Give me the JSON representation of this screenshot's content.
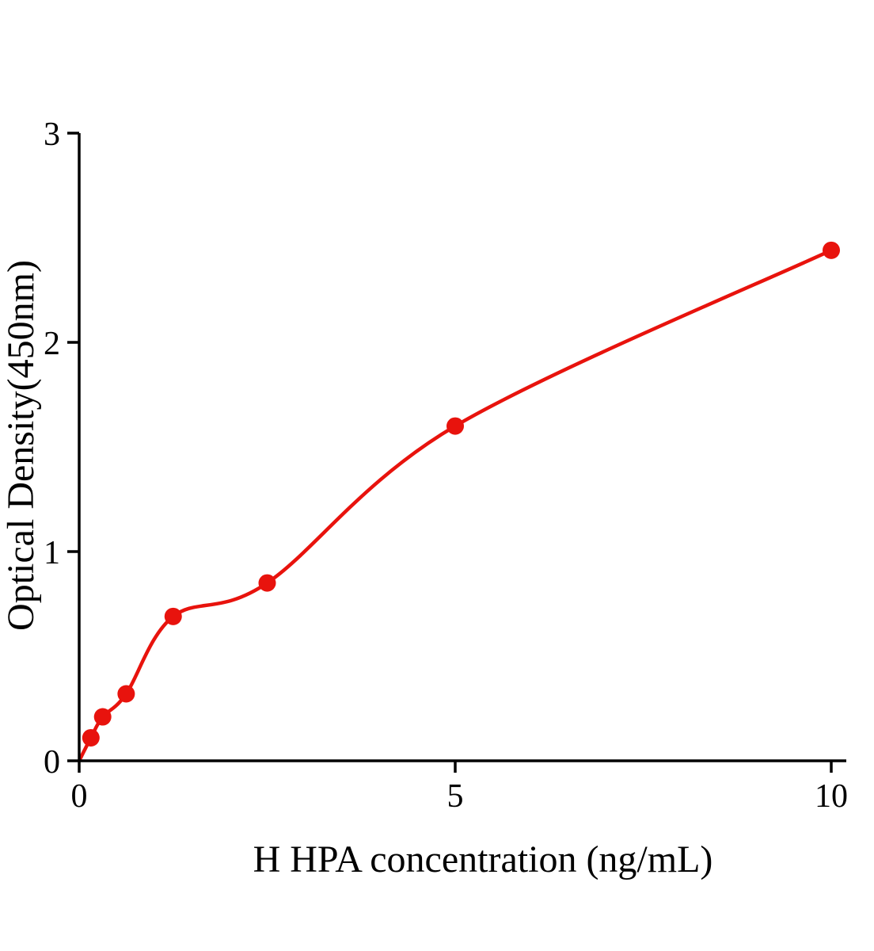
{
  "chart_data": {
    "type": "scatter",
    "title": "",
    "xlabel": "H HPA concentration (ng/mL)",
    "ylabel": "Optical Density(450nm)",
    "x": [
      0.156,
      0.3125,
      0.625,
      1.25,
      2.5,
      5,
      10
    ],
    "y": [
      0.11,
      0.21,
      0.32,
      0.69,
      0.85,
      1.6,
      2.44
    ],
    "curve_start_x": 0,
    "curve_start_y": 0,
    "xlim": [
      0,
      10.2
    ],
    "ylim": [
      0,
      3
    ],
    "xticks": [
      0,
      5,
      10
    ],
    "yticks": [
      0,
      1,
      2,
      3
    ],
    "point_color": "#e8130d",
    "line_color": "#e8130d",
    "axis_color": "#000000",
    "grid": false,
    "legend_position": "none"
  }
}
